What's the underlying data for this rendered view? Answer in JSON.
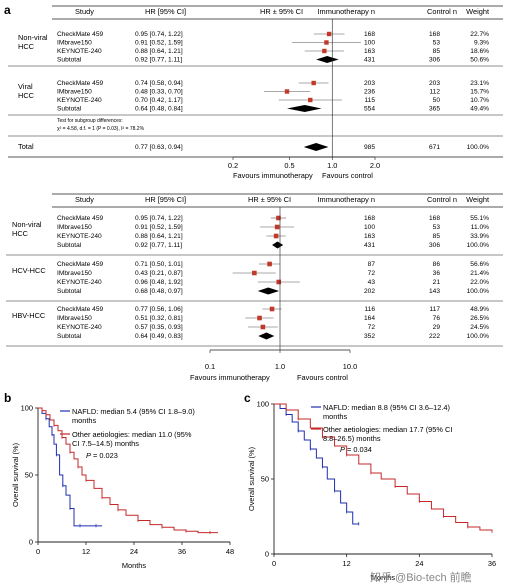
{
  "panels": {
    "a": "a",
    "b": "b",
    "c": "c"
  },
  "forest1": {
    "headers": {
      "study": "Study",
      "hrci": "HR [95% CI]",
      "plot": "HR ± 95% CI",
      "immuno": "Immunotherapy n",
      "control": "Control n",
      "weight": "Weight"
    },
    "groups": [
      {
        "label_lines": [
          "Non-viral",
          "HCC"
        ],
        "rows": [
          {
            "study": "CheckMate 459",
            "hrci": "0.95 [0.74, 1.22]",
            "hr": 0.95,
            "lo": 0.74,
            "hi": 1.22,
            "immuno": "168",
            "control": "168",
            "weight": "22.7%"
          },
          {
            "study": "IMbrave150",
            "hrci": "0.91 [0.52, 1.59]",
            "hr": 0.91,
            "lo": 0.52,
            "hi": 1.59,
            "immuno": "100",
            "control": "53",
            "weight": "9.3%"
          },
          {
            "study": "KEYNOTE-240",
            "hrci": "0.88 [0.64, 1.21]",
            "hr": 0.88,
            "lo": 0.64,
            "hi": 1.21,
            "immuno": "163",
            "control": "85",
            "weight": "18.6%"
          }
        ],
        "subtotal": {
          "study": "Subtotal",
          "hrci": "0.92 [0.77, 1.11]",
          "hr": 0.92,
          "lo": 0.77,
          "hi": 1.11,
          "immuno": "431",
          "control": "306",
          "weight": "50.6%"
        }
      },
      {
        "label_lines": [
          "Viral",
          "HCC"
        ],
        "rows": [
          {
            "study": "CheckMate 459",
            "hrci": "0.74 [0.58, 0.94]",
            "hr": 0.74,
            "lo": 0.58,
            "hi": 0.94,
            "immuno": "203",
            "control": "203",
            "weight": "23.1%"
          },
          {
            "study": "IMbrave150",
            "hrci": "0.48 [0.33, 0.70]",
            "hr": 0.48,
            "lo": 0.33,
            "hi": 0.7,
            "immuno": "236",
            "control": "112",
            "weight": "15.7%"
          },
          {
            "study": "KEYNOTE-240",
            "hrci": "0.70 [0.42, 1.17]",
            "hr": 0.7,
            "lo": 0.42,
            "hi": 1.17,
            "immuno": "115",
            "control": "50",
            "weight": "10.7%"
          }
        ],
        "subtotal": {
          "study": "Subtotal",
          "hrci": "0.64 [0.48, 0.84]",
          "hr": 0.64,
          "lo": 0.48,
          "hi": 0.84,
          "immuno": "554",
          "control": "365",
          "weight": "49.4%"
        }
      }
    ],
    "test_note_1": "Test for subgroup differences:",
    "test_note_2": "χ² = 4.58, d.f. = 1 (P = 0.03), I² = 78.2%",
    "total": {
      "study": "Total",
      "hrci": "0.77 [0.63, 0.94]",
      "hr": 0.77,
      "lo": 0.63,
      "hi": 0.94,
      "immuno": "985",
      "control": "671",
      "weight": "100.0%"
    },
    "axis_ticks": [
      "0.2",
      "0.5",
      "1.0",
      "2.0"
    ],
    "favours_left": "Favours immunotherapy",
    "favours_right": "Favours control",
    "marker_color": "#c0392b"
  },
  "forest2": {
    "headers": {
      "study": "Study",
      "hrci": "HR [95% CI]",
      "plot": "HR ± 95% CI",
      "immuno": "Immunotherapy n",
      "control": "Control n",
      "weight": "Weight"
    },
    "groups": [
      {
        "label_lines": [
          "Non-viral",
          "HCC"
        ],
        "rows": [
          {
            "study": "CheckMate 459",
            "hrci": "0.95 [0.74, 1.22]",
            "hr": 0.95,
            "lo": 0.74,
            "hi": 1.22,
            "immuno": "168",
            "control": "168",
            "weight": "55.1%"
          },
          {
            "study": "IMbrave150",
            "hrci": "0.91 [0.52, 1.59]",
            "hr": 0.91,
            "lo": 0.52,
            "hi": 1.59,
            "immuno": "100",
            "control": "53",
            "weight": "11.0%"
          },
          {
            "study": "KEYNOTE-240",
            "hrci": "0.88 [0.64, 1.21]",
            "hr": 0.88,
            "lo": 0.64,
            "hi": 1.21,
            "immuno": "163",
            "control": "85",
            "weight": "33.9%"
          }
        ],
        "subtotal": {
          "study": "Subtotal",
          "hrci": "0.92 [0.77, 1.11]",
          "hr": 0.92,
          "lo": 0.77,
          "hi": 1.11,
          "immuno": "431",
          "control": "306",
          "weight": "100.0%"
        }
      },
      {
        "label_lines": [
          "HCV-HCC"
        ],
        "rows": [
          {
            "study": "CheckMate 459",
            "hrci": "0.71 [0.50, 1.01]",
            "hr": 0.71,
            "lo": 0.5,
            "hi": 1.01,
            "immuno": "87",
            "control": "86",
            "weight": "56.6%"
          },
          {
            "study": "IMbrave150",
            "hrci": "0.43 [0.21, 0.87]",
            "hr": 0.43,
            "lo": 0.21,
            "hi": 0.87,
            "immuno": "72",
            "control": "36",
            "weight": "21.4%"
          },
          {
            "study": "KEYNOTE-240",
            "hrci": "0.96 [0.48, 1.92]",
            "hr": 0.96,
            "lo": 0.48,
            "hi": 1.92,
            "immuno": "43",
            "control": "21",
            "weight": "22.0%"
          }
        ],
        "subtotal": {
          "study": "Subtotal",
          "hrci": "0.68 [0.48, 0.97]",
          "hr": 0.68,
          "lo": 0.48,
          "hi": 0.97,
          "immuno": "202",
          "control": "143",
          "weight": "100.0%"
        }
      },
      {
        "label_lines": [
          "HBV-HCC"
        ],
        "rows": [
          {
            "study": "CheckMate 459",
            "hrci": "0.77 [0.56, 1.06]",
            "hr": 0.77,
            "lo": 0.56,
            "hi": 1.06,
            "immuno": "116",
            "control": "117",
            "weight": "48.9%"
          },
          {
            "study": "IMbrave150",
            "hrci": "0.51 [0.32, 0.81]",
            "hr": 0.51,
            "lo": 0.32,
            "hi": 0.81,
            "immuno": "164",
            "control": "76",
            "weight": "26.5%"
          },
          {
            "study": "KEYNOTE-240",
            "hrci": "0.57 [0.35, 0.93]",
            "hr": 0.57,
            "lo": 0.35,
            "hi": 0.93,
            "immuno": "72",
            "control": "29",
            "weight": "24.5%"
          }
        ],
        "subtotal": {
          "study": "Subtotal",
          "hrci": "0.64 [0.49, 0.83]",
          "hr": 0.64,
          "lo": 0.49,
          "hi": 0.83,
          "immuno": "352",
          "control": "222",
          "weight": "100.0%"
        }
      }
    ],
    "axis_ticks": [
      "0.1",
      "1.0",
      "10.0"
    ],
    "favours_left": "Favours immunotherapy",
    "favours_right": "Favours control",
    "marker_color": "#c0392b"
  },
  "chart_data": [
    {
      "type": "line",
      "panel": "b",
      "xlabel": "Months",
      "ylabel": "Overall survival (%)",
      "xlim": [
        0,
        48
      ],
      "ylim": [
        0,
        100
      ],
      "xticks": [
        "0",
        "12",
        "24",
        "36",
        "48"
      ],
      "yticks": [
        "0",
        "50",
        "100"
      ],
      "series": [
        {
          "name": "NAFLD: median 5.4 (95% CI 1.8–9.0) months",
          "color": "#1f2fb0",
          "x": [
            0,
            1,
            2,
            2.8,
            3.5,
            4,
            4.6,
            5.4,
            6.2,
            7,
            8,
            9,
            10.5,
            12,
            14.5,
            16
          ],
          "y": [
            100,
            96,
            92,
            86,
            80,
            73,
            65,
            50,
            42,
            35,
            25,
            12,
            12,
            12,
            12,
            12
          ]
        },
        {
          "name": "Other aetiologies: median 11.0 (95% CI 7.5–14.5) months",
          "color": "#c62828",
          "x": [
            0,
            1,
            2,
            3,
            4,
            5,
            6,
            7,
            8,
            9,
            10,
            11,
            12,
            14,
            16,
            18,
            20,
            22,
            25,
            28,
            31,
            34,
            37,
            40,
            43,
            45
          ],
          "y": [
            100,
            98,
            95,
            91,
            87,
            83,
            78,
            73,
            67,
            62,
            56,
            50,
            46,
            40,
            33,
            28,
            24,
            20,
            16,
            13,
            11,
            9,
            8,
            7,
            7,
            7
          ]
        }
      ],
      "annotations": [
        "P = 0.023"
      ]
    },
    {
      "type": "line",
      "panel": "c",
      "xlabel": "Months",
      "ylabel": "Overall survival (%)",
      "xlim": [
        0,
        36
      ],
      "ylim": [
        0,
        100
      ],
      "xticks": [
        "0",
        "12",
        "24",
        "36"
      ],
      "yticks": [
        "0",
        "50",
        "100"
      ],
      "series": [
        {
          "name": "NAFLD: median 8.8 (95% CI 3.6–12.4) months",
          "color": "#1f2fb0",
          "x": [
            0,
            1,
            2,
            3,
            4,
            5,
            6,
            7,
            8,
            8.8,
            10,
            11,
            12,
            13,
            14
          ],
          "y": [
            100,
            97,
            93,
            88,
            82,
            76,
            70,
            64,
            58,
            50,
            42,
            34,
            28,
            20,
            20
          ]
        },
        {
          "name": "Other aetiologies: median 17.7 (95% CI 8.8–26.5) months",
          "color": "#c62828",
          "x": [
            0,
            2,
            4,
            6,
            8,
            10,
            12,
            14,
            16,
            17.7,
            20,
            22,
            24,
            26,
            28,
            30,
            32,
            34,
            36
          ],
          "y": [
            100,
            96,
            90,
            84,
            78,
            72,
            66,
            60,
            54,
            50,
            45,
            40,
            35,
            30,
            25,
            21,
            18,
            16,
            15
          ]
        }
      ],
      "annotations": [
        "P = 0.034"
      ]
    }
  ],
  "watermark": "知乎 @Bio-tech 前瞻"
}
